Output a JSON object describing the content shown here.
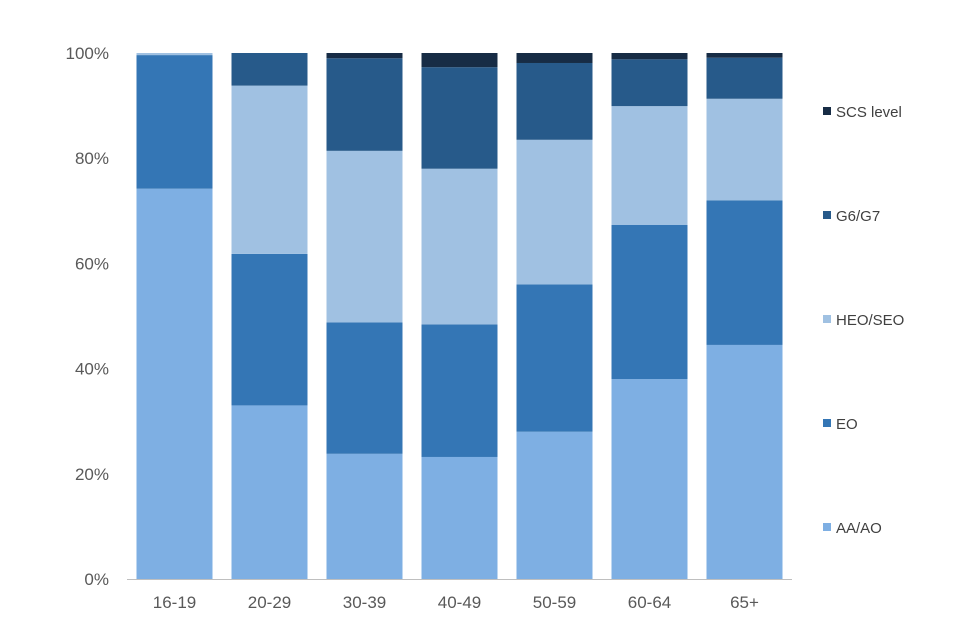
{
  "chart_data": {
    "type": "bar",
    "stacked": true,
    "categories": [
      "16-19",
      "20-29",
      "30-39",
      "40-49",
      "50-59",
      "60-64",
      "65+"
    ],
    "series": [
      {
        "name": "AA/AO",
        "color": "#7eafe3",
        "values": [
          74.2,
          33.0,
          23.8,
          23.2,
          28.0,
          38.0,
          44.5
        ]
      },
      {
        "name": "EO",
        "color": "#3476b5",
        "values": [
          25.4,
          28.8,
          25.0,
          25.2,
          28.0,
          29.3,
          27.5
        ]
      },
      {
        "name": "HEO/SEO",
        "color": "#a0c1e2",
        "values": [
          0.4,
          32.0,
          32.6,
          29.6,
          27.5,
          22.6,
          19.3
        ]
      },
      {
        "name": "G6/G7",
        "color": "#275a8a",
        "values": [
          0.0,
          6.2,
          17.6,
          19.3,
          14.6,
          8.9,
          7.8
        ]
      },
      {
        "name": "SCS level",
        "color": "#172c45",
        "values": [
          0.0,
          0.0,
          1.0,
          2.7,
          1.9,
          1.2,
          0.9
        ]
      }
    ],
    "title": "",
    "xlabel": "",
    "ylabel": "",
    "ylim": [
      0,
      100
    ],
    "yticks": [
      "0%",
      "20%",
      "40%",
      "60%",
      "80%",
      "100%"
    ],
    "grid": false,
    "legend_position": "right",
    "legend_order": [
      "SCS level",
      "G6/G7",
      "HEO/SEO",
      "EO",
      "AA/AO"
    ]
  }
}
